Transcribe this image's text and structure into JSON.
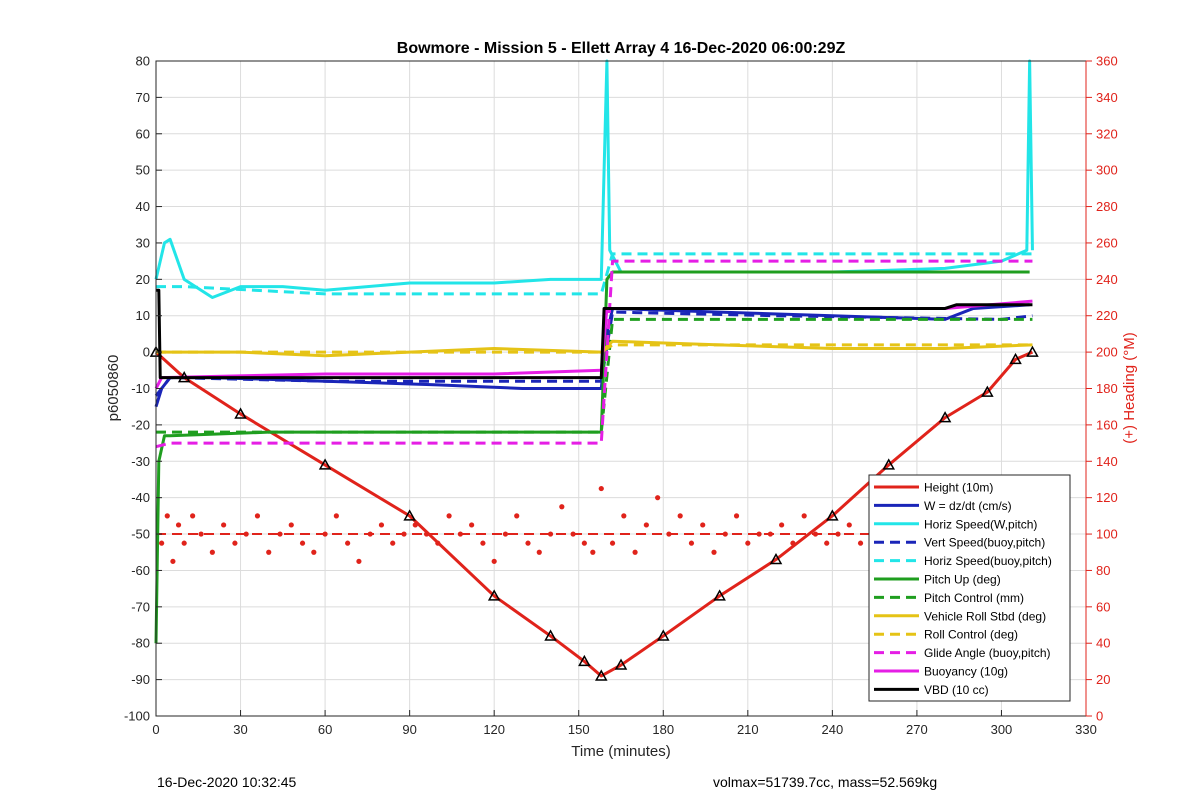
{
  "chart_data": {
    "type": "line",
    "title": "Bowmore - Mission 5 - Ellett Array 4 16-Dec-2020 06:00:29Z",
    "xlabel": "Time (minutes)",
    "ylabel_left": "p6050860",
    "ylabel_right": "(+) Heading (°M)",
    "xlim": [
      0,
      330
    ],
    "ylim_left": [
      -100,
      80
    ],
    "ylim_right": [
      0,
      360
    ],
    "xticks": [
      0,
      30,
      60,
      90,
      120,
      150,
      180,
      210,
      240,
      270,
      300,
      330
    ],
    "yticks_left": [
      80,
      70,
      60,
      50,
      40,
      30,
      20,
      10,
      0,
      -10,
      -20,
      -30,
      -40,
      -50,
      -60,
      -70,
      -80,
      -90,
      -100
    ],
    "yticks_right": [
      360,
      340,
      320,
      300,
      280,
      260,
      240,
      220,
      200,
      180,
      160,
      140,
      120,
      100,
      80,
      60,
      40,
      20,
      0
    ],
    "grid": true,
    "legend_position": "bottom-right",
    "series": [
      {
        "name": "Height (10m)",
        "color": "#e0231b",
        "style": "solid",
        "x": [
          0,
          10,
          30,
          60,
          90,
          120,
          140,
          152,
          158,
          165,
          180,
          200,
          220,
          240,
          260,
          280,
          295,
          305,
          311
        ],
        "y": [
          0,
          -7,
          -17,
          -31,
          -45,
          -67,
          -78,
          -85,
          -89,
          -86,
          -78,
          -67,
          -57,
          -45,
          -31,
          -18,
          -11,
          -2,
          0
        ]
      },
      {
        "name": "W = dz/dt (cm/s)",
        "color": "#1a25b8",
        "style": "solid",
        "x": [
          0,
          2,
          5,
          20,
          60,
          100,
          130,
          158,
          160,
          162,
          200,
          240,
          280,
          290,
          310
        ],
        "y": [
          -15,
          -10,
          -7,
          -7,
          -8,
          -9,
          -10,
          -10,
          5,
          12,
          11,
          10,
          9,
          12,
          13
        ]
      },
      {
        "name": "Horiz Speed(W,pitch)",
        "color": "#22e5e8",
        "style": "solid",
        "x": [
          0,
          3,
          5,
          10,
          20,
          30,
          45,
          60,
          90,
          120,
          140,
          158,
          160,
          161,
          165,
          200,
          240,
          280,
          300,
          309,
          310,
          311
        ],
        "y": [
          20,
          30,
          31,
          20,
          15,
          18,
          18,
          17,
          19,
          19,
          20,
          20,
          80,
          28,
          22,
          22,
          22,
          23,
          25,
          28,
          80,
          28
        ]
      },
      {
        "name": "Vert Speed(buoy,pitch)",
        "color": "#1a25b8",
        "style": "dashed",
        "x": [
          0,
          5,
          60,
          120,
          158,
          162,
          220,
          300,
          311
        ],
        "y": [
          -12,
          -7,
          -8,
          -8,
          -8,
          11,
          10,
          9,
          10
        ]
      },
      {
        "name": "Horiz Speed(buoy,pitch)",
        "color": "#22e5e8",
        "style": "dashed",
        "x": [
          0,
          10,
          60,
          120,
          158,
          162,
          220,
          300,
          311
        ],
        "y": [
          18,
          18,
          16,
          16,
          16,
          27,
          27,
          27,
          27
        ]
      },
      {
        "name": "Pitch Up (deg)",
        "color": "#1f9e1f",
        "style": "solid",
        "x": [
          0,
          1,
          3,
          5,
          40,
          80,
          120,
          158,
          160,
          162,
          200,
          240,
          280,
          310
        ],
        "y": [
          -80,
          -30,
          -23,
          -23,
          -22,
          -22,
          -22,
          -22,
          20,
          22,
          22,
          22,
          22,
          22
        ]
      },
      {
        "name": "Pitch Control (mm)",
        "color": "#1f9e1f",
        "style": "dashed",
        "x": [
          0,
          5,
          60,
          158,
          162,
          220,
          311
        ],
        "y": [
          -22,
          -22,
          -22,
          -22,
          9,
          9,
          9
        ]
      },
      {
        "name": "Vehicle Roll Stbd (deg)",
        "color": "#e5c316",
        "style": "solid",
        "x": [
          0,
          30,
          60,
          90,
          120,
          158,
          162,
          200,
          240,
          280,
          311
        ],
        "y": [
          0,
          0,
          -1,
          0,
          1,
          0,
          3,
          2,
          1,
          1,
          2
        ]
      },
      {
        "name": "Roll Control (deg)",
        "color": "#e5c316",
        "style": "dashed",
        "x": [
          0,
          30,
          60,
          120,
          158,
          162,
          220,
          311
        ],
        "y": [
          0,
          0,
          0,
          0,
          0,
          2,
          2,
          2
        ]
      },
      {
        "name": "Glide Angle (buoy,pitch)",
        "color": "#e51ee5",
        "style": "dashed",
        "x": [
          0,
          5,
          60,
          158,
          162,
          220,
          311
        ],
        "y": [
          -26,
          -25,
          -25,
          -25,
          25,
          25,
          25
        ]
      },
      {
        "name": "Buoyancy (10g)",
        "color": "#e51ee5",
        "style": "solid",
        "x": [
          0,
          2,
          60,
          120,
          158,
          160,
          200,
          280,
          311
        ],
        "y": [
          -10,
          -7,
          -6,
          -6,
          -5,
          12,
          12,
          12,
          14
        ]
      },
      {
        "name": "VBD (10 cc)",
        "color": "#000000",
        "style": "solid",
        "x": [
          0,
          1,
          1.5,
          60,
          158,
          159,
          161,
          200,
          280,
          284,
          311
        ],
        "y": [
          17,
          17,
          -7,
          -7,
          -7,
          12,
          12,
          12,
          12,
          13,
          13
        ]
      }
    ],
    "heading_scatter": {
      "axis": "right",
      "color": "#e0231b",
      "reference_line": 100,
      "x": [
        2,
        4,
        6,
        8,
        10,
        13,
        16,
        20,
        24,
        28,
        32,
        36,
        40,
        44,
        48,
        52,
        56,
        60,
        64,
        68,
        72,
        76,
        80,
        84,
        88,
        92,
        96,
        100,
        104,
        108,
        112,
        116,
        120,
        124,
        128,
        132,
        136,
        140,
        144,
        148,
        152,
        155,
        158,
        162,
        166,
        170,
        174,
        178,
        182,
        186,
        190,
        194,
        198,
        202,
        206,
        210,
        214,
        218,
        222,
        226,
        230,
        234,
        238,
        242,
        246,
        250,
        254,
        258,
        262,
        266,
        270,
        274,
        278,
        282,
        286,
        290,
        294,
        298,
        302,
        305,
        308,
        311
      ],
      "y": [
        95,
        110,
        85,
        105,
        95,
        110,
        100,
        90,
        105,
        95,
        100,
        110,
        90,
        100,
        105,
        95,
        90,
        100,
        110,
        95,
        85,
        100,
        105,
        95,
        100,
        105,
        100,
        95,
        110,
        100,
        105,
        95,
        85,
        100,
        110,
        95,
        90,
        100,
        115,
        100,
        95,
        90,
        125,
        95,
        110,
        90,
        105,
        120,
        100,
        110,
        95,
        105,
        90,
        100,
        110,
        95,
        100,
        100,
        105,
        95,
        110,
        100,
        95,
        100,
        105,
        95,
        90,
        105,
        110,
        90,
        100,
        95,
        100,
        105,
        95,
        110,
        100,
        95,
        105,
        90,
        80,
        85
      ]
    },
    "legend": [
      "Height (10m)",
      "W = dz/dt (cm/s)",
      "Horiz Speed(W,pitch)",
      "Vert Speed(buoy,pitch)",
      "Horiz Speed(buoy,pitch)",
      "Pitch Up (deg)",
      "Pitch Control (mm)",
      "Vehicle Roll Stbd (deg)",
      "Roll Control (deg)",
      "Glide Angle (buoy,pitch)",
      "Buoyancy (10g)",
      "VBD (10 cc)"
    ]
  },
  "footer": {
    "left": "16-Dec-2020 10:32:45",
    "right": "volmax=51739.7cc, mass=52.569kg"
  }
}
